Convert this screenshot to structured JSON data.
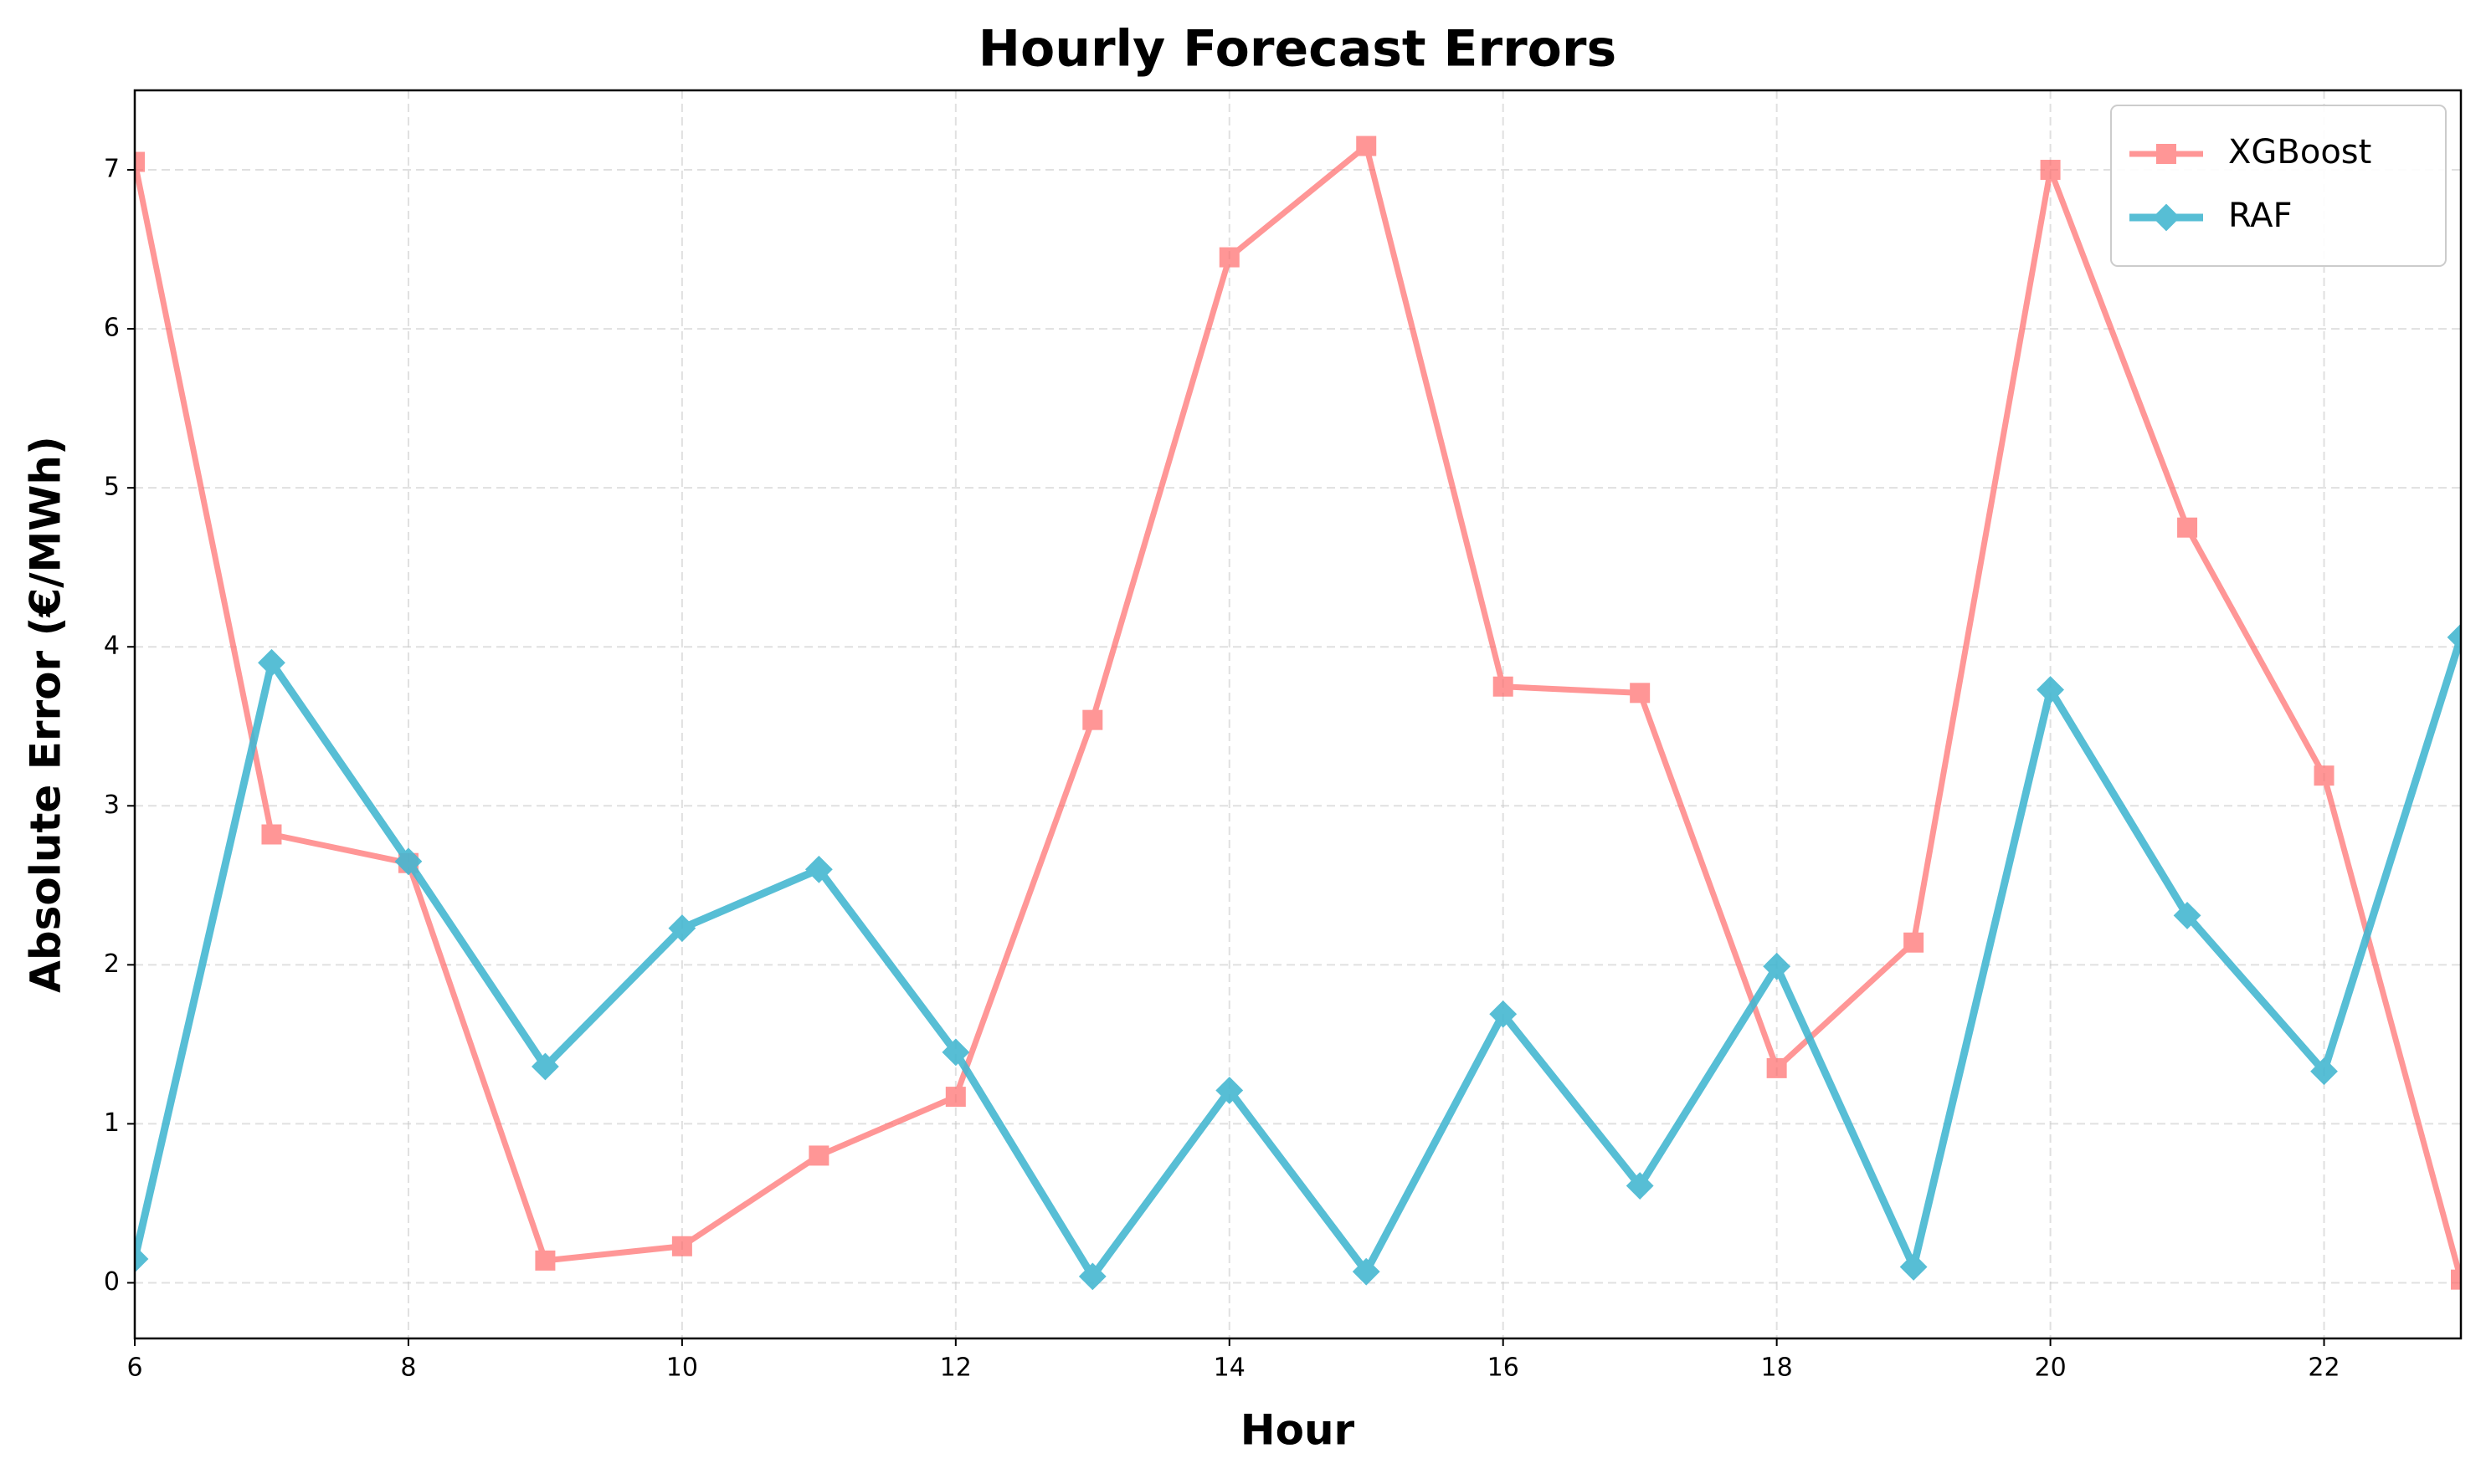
{
  "chart_data": {
    "type": "line",
    "title": "Hourly Forecast Errors",
    "x_label": "Hour",
    "y_label": "Absolute Error (€/MWh)",
    "x": [
      6,
      7,
      8,
      9,
      10,
      11,
      12,
      13,
      14,
      15,
      16,
      17,
      18,
      19,
      20,
      21,
      22,
      23
    ],
    "series": [
      {
        "name": "XGBoost",
        "color": "#FF6B6B",
        "marker": "square",
        "values": [
          7.05,
          2.82,
          2.64,
          0.14,
          0.23,
          0.8,
          1.17,
          3.54,
          6.45,
          7.15,
          3.75,
          3.71,
          1.35,
          2.14,
          7.0,
          4.75,
          3.19,
          0.02
        ]
      },
      {
        "name": "RAF",
        "color": "#45B7D1",
        "marker": "diamond",
        "values": [
          0.15,
          3.9,
          2.65,
          1.36,
          2.23,
          2.6,
          1.45,
          0.04,
          1.21,
          0.07,
          1.69,
          0.61,
          1.99,
          0.1,
          3.73,
          2.31,
          1.33,
          4.06
        ]
      }
    ],
    "xlim": [
      6,
      23
    ],
    "xticks": [
      6,
      8,
      10,
      12,
      14,
      16,
      18,
      20,
      22
    ],
    "ylim": [
      -0.35,
      7.5
    ],
    "yticks": [
      0,
      1,
      2,
      3,
      4,
      5,
      6,
      7
    ],
    "grid": true,
    "legend": "upper right"
  }
}
